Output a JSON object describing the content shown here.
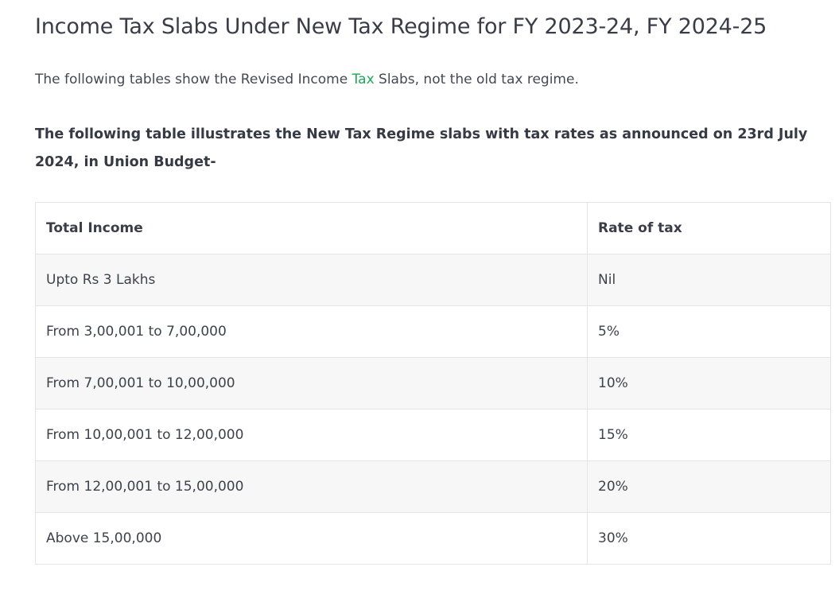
{
  "heading": "Income Tax Slabs Under New Tax Regime for FY 2023-24, FY 2024-25",
  "intro": {
    "before": "The following tables show the Revised Income ",
    "link": "Tax",
    "after": " Slabs, not the old tax regime."
  },
  "lead": "The following table illustrates the New Tax Regime slabs with tax rates as announced on 23rd July 2024, in Union Budget-",
  "table": {
    "headers": [
      "Total Income",
      "Rate of tax"
    ],
    "rows": [
      [
        "Upto Rs 3 Lakhs",
        "Nil"
      ],
      [
        "From 3,00,001 to 7,00,000",
        "5%"
      ],
      [
        "From 7,00,001 to 10,00,000",
        "10%"
      ],
      [
        "From 10,00,001 to 12,00,000",
        "15%"
      ],
      [
        "From 12,00,001 to 15,00,000",
        "20%"
      ],
      [
        "Above 15,00,000",
        "30%"
      ]
    ]
  },
  "colors": {
    "link": "#1ea65a",
    "stripe": "#f7f7f7",
    "border": "#e4e4e4"
  }
}
